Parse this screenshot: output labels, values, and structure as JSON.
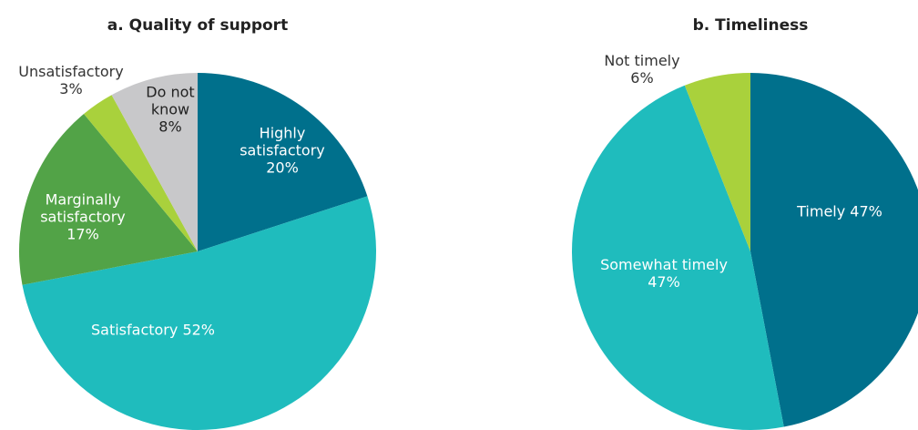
{
  "chart_data": [
    {
      "type": "pie",
      "title": "a. Quality of support",
      "categories": [
        "Highly satisfactory",
        "Satisfactory",
        "Marginally satisfactory",
        "Unsatisfactory",
        "Do not know"
      ],
      "values": [
        20,
        52,
        17,
        3,
        8
      ],
      "value_labels": [
        "20%",
        "52%",
        "17%",
        "3%",
        "8%"
      ],
      "colors": [
        "#00708c",
        "#1fbcbd",
        "#52a347",
        "#a9d13c",
        "#c8c8ca"
      ]
    },
    {
      "type": "pie",
      "title": "b. Timeliness",
      "categories": [
        "Timely",
        "Somewhat timely",
        "Not timely"
      ],
      "values": [
        47,
        47,
        6
      ],
      "value_labels": [
        "47%",
        "47%",
        "6%"
      ],
      "colors": [
        "#00708c",
        "#1fbcbd",
        "#a9d13c"
      ]
    }
  ]
}
